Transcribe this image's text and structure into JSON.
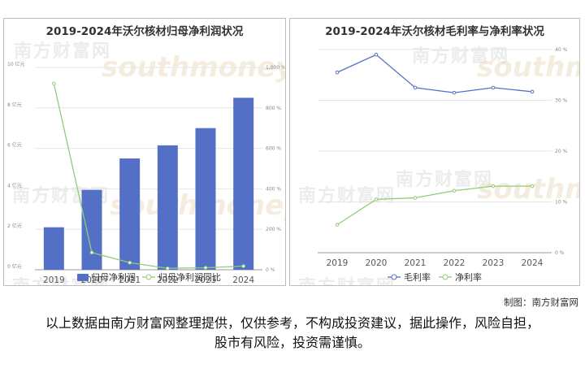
{
  "chart_data": [
    {
      "type": "bar",
      "title": "2019-2024年沃尔核材归母净利润状况",
      "categories": [
        "2019",
        "2020",
        "2021",
        "2022",
        "2023",
        "2024"
      ],
      "series": [
        {
          "name": "归母净利润",
          "type": "bar",
          "axis": "left",
          "values": [
            2.1,
            3.95,
            5.5,
            6.15,
            7.0,
            8.5
          ]
        },
        {
          "name": "归母净利润同比",
          "type": "line",
          "axis": "right",
          "values": [
            920,
            85,
            35,
            7,
            10,
            18
          ]
        }
      ],
      "y_left": {
        "ticks": [
          "0 亿元",
          "2 亿元",
          "4 亿元",
          "6 亿元",
          "8 亿元",
          "10 亿元"
        ],
        "ylim": [
          0,
          10
        ]
      },
      "y_right": {
        "ticks": [
          "0 %",
          "200 %",
          "400 %",
          "600 %",
          "800 %",
          "1,000 %"
        ],
        "ylim": [
          0,
          1000
        ]
      },
      "grid": true,
      "legend": "bottom",
      "colors": {
        "bar": "#5470c6",
        "line": "#91cc75"
      }
    },
    {
      "type": "line",
      "title": "2019-2024年沃尔核材毛利率与净利率状况",
      "categories": [
        "2019",
        "2020",
        "2021",
        "2022",
        "2023",
        "2024"
      ],
      "series": [
        {
          "name": "毛利率",
          "values": [
            35.5,
            39.0,
            32.5,
            31.5,
            32.5,
            31.7
          ]
        },
        {
          "name": "净利率",
          "values": [
            5.5,
            10.5,
            10.8,
            12.2,
            13.1,
            13.1
          ]
        }
      ],
      "y_right": {
        "ticks": [
          "0 %",
          "10 %",
          "20 %",
          "30 %",
          "40 %"
        ],
        "ylim": [
          0,
          40
        ]
      },
      "grid": true,
      "legend": "bottom",
      "colors": {
        "line1": "#5470c6",
        "line2": "#91cc75"
      }
    }
  ],
  "watermarks": {
    "logo": "南方财富网",
    "url": "southmoney.com"
  },
  "credit": "制图：南方财富网",
  "disclaimer": "以上数据由南方财富网整理提供，仅供参考，不构成投资建议，据此操作，风险自担，股市有风险，投资需谨慎。"
}
